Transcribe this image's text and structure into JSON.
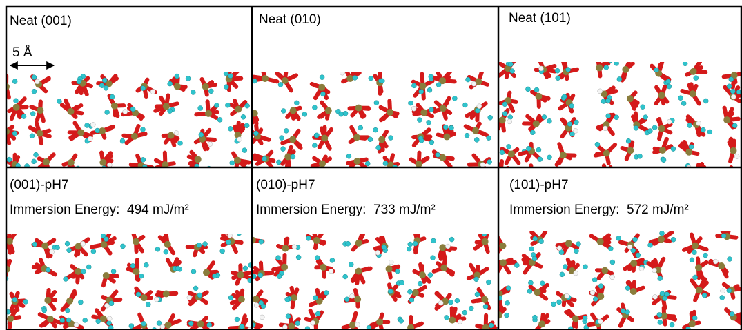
{
  "panels": [
    {
      "label": "Neat (001)",
      "scale_bar": "5 Å"
    },
    {
      "label": "Neat (010)"
    },
    {
      "label": "Neat (101)"
    },
    {
      "label": "(001)-pH7",
      "energy": "Immersion Energy:  494 mJ/m²"
    },
    {
      "label": "(010)-pH7",
      "energy": "Immersion Energy:  733 mJ/m²"
    },
    {
      "label": "(101)-pH7",
      "energy": "Immersion Energy:  572 mJ/m²"
    }
  ]
}
